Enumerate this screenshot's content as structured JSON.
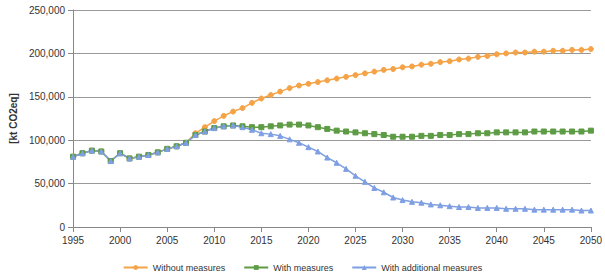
{
  "chart_data": {
    "type": "line",
    "y_label": "[kt CO2eq]",
    "x": [
      1995,
      1996,
      1997,
      1998,
      1999,
      2000,
      2001,
      2002,
      2003,
      2004,
      2005,
      2006,
      2007,
      2008,
      2009,
      2010,
      2011,
      2012,
      2013,
      2014,
      2015,
      2016,
      2017,
      2018,
      2019,
      2020,
      2021,
      2022,
      2023,
      2024,
      2025,
      2026,
      2027,
      2028,
      2029,
      2030,
      2031,
      2032,
      2033,
      2034,
      2035,
      2036,
      2037,
      2038,
      2039,
      2040,
      2041,
      2042,
      2043,
      2044,
      2045,
      2046,
      2047,
      2048,
      2049,
      2050
    ],
    "series": [
      {
        "name": "Without measures",
        "color": "#f5a347",
        "marker": "circle",
        "values": [
          81000,
          85000,
          88000,
          87000,
          76000,
          85000,
          79000,
          81000,
          83000,
          86000,
          90000,
          93000,
          97000,
          108000,
          115000,
          122000,
          128000,
          133000,
          137000,
          143000,
          148000,
          152000,
          156000,
          160000,
          163000,
          165000,
          167000,
          169000,
          171000,
          173000,
          175000,
          177000,
          179000,
          181000,
          182000,
          184000,
          185000,
          187000,
          188000,
          190000,
          191000,
          193000,
          194000,
          196000,
          197000,
          199000,
          200000,
          201000,
          201000,
          202000,
          202000,
          203000,
          203000,
          204000,
          204000,
          205000
        ]
      },
      {
        "name": "With measures",
        "color": "#5d9c45",
        "marker": "square",
        "values": [
          81000,
          85000,
          88000,
          87000,
          76000,
          85000,
          79000,
          81000,
          83000,
          86000,
          90000,
          93000,
          97000,
          106000,
          110000,
          114000,
          116000,
          117000,
          116000,
          115000,
          115000,
          116000,
          117000,
          118000,
          118000,
          117000,
          115000,
          113000,
          111000,
          110000,
          109000,
          108000,
          107000,
          106000,
          104000,
          104000,
          104000,
          105000,
          105000,
          106000,
          106000,
          107000,
          107000,
          108000,
          108000,
          109000,
          109000,
          109000,
          109000,
          110000,
          110000,
          110000,
          110000,
          110000,
          110000,
          111000
        ]
      },
      {
        "name": "With additional measures",
        "color": "#7f9fe3",
        "marker": "triangle",
        "values": [
          81000,
          85000,
          88000,
          87000,
          76000,
          85000,
          79000,
          81000,
          83000,
          86000,
          90000,
          93000,
          97000,
          106000,
          110000,
          114000,
          116000,
          117000,
          115000,
          112000,
          108000,
          107000,
          105000,
          101000,
          97000,
          92000,
          87000,
          80000,
          74000,
          67000,
          59000,
          52000,
          45000,
          40000,
          34000,
          31000,
          29000,
          28000,
          26000,
          25000,
          24000,
          23000,
          23000,
          22000,
          22000,
          22000,
          21000,
          21000,
          21000,
          20000,
          20000,
          20000,
          20000,
          20000,
          19000,
          19000
        ]
      }
    ],
    "xlim": [
      1995,
      2050
    ],
    "xticks": [
      1995,
      2000,
      2005,
      2010,
      2015,
      2020,
      2025,
      2030,
      2035,
      2040,
      2045,
      2050
    ],
    "ylim": [
      0,
      250000
    ],
    "yticks": [
      0,
      {
        "value": 50000,
        "label": "50,000"
      },
      {
        "value": 100000,
        "label": "100,000"
      },
      {
        "value": 150000,
        "label": "150,000"
      },
      {
        "value": 200000,
        "label": "200,000"
      },
      {
        "value": 250000,
        "label": "250,000"
      }
    ],
    "grid": true,
    "legend": "bottom"
  }
}
